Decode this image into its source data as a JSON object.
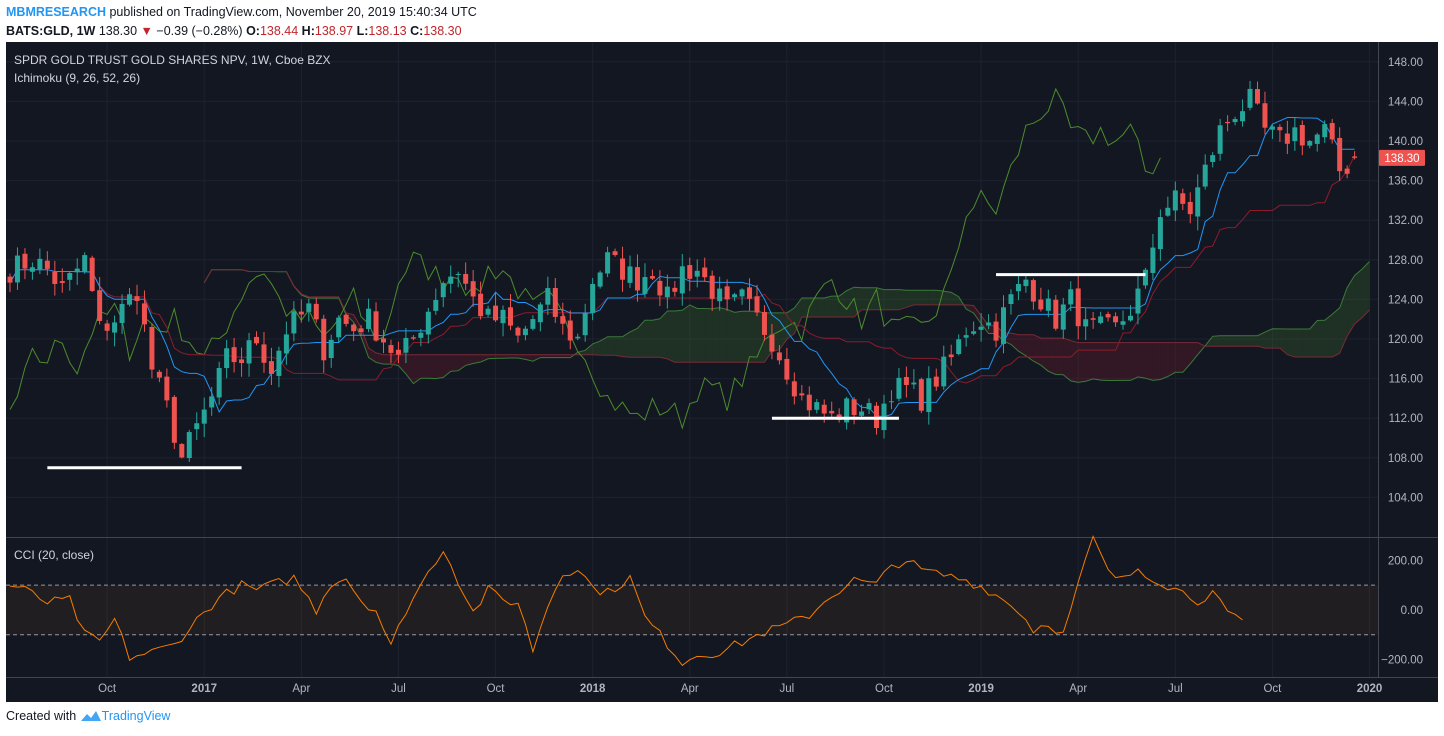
{
  "header": {
    "author": "MBMRESEARCH",
    "published": "published on TradingView.com, November 20, 2019 15:40:34 UTC",
    "symbol": "BATS:GLD, 1W",
    "last": "138.30",
    "change": "−0.39 (−0.28%)",
    "open_label": "O:",
    "open": "138.44",
    "high_label": "H:",
    "high": "138.97",
    "low_label": "L:",
    "low": "138.13",
    "close_label": "C:",
    "close": "138.30"
  },
  "footer": {
    "created": "Created with",
    "brand": "TradingView"
  },
  "colors": {
    "bg": "#131722",
    "up": "#26a69a",
    "down": "#ef5350",
    "tenkan": "#2196f3",
    "kijun": "#8c1c2c",
    "chikou": "#4c8c2c",
    "cci": "#f57c00",
    "grid": "#1e2230",
    "support": "#ffffff",
    "text": "#b2b5be"
  },
  "chart_data": [
    {
      "type": "candlestick",
      "title": "SPDR GOLD TRUST GOLD SHARES NPV, 1W, Cboe BZX",
      "indicator": "Ichimoku (9, 26, 52, 26)",
      "last_price_label": "138.30",
      "ylim": [
        100,
        150
      ],
      "yticks": [
        104,
        108,
        112,
        116,
        120,
        124,
        128,
        132,
        136,
        140,
        144,
        148
      ],
      "ytick_labels": [
        "104.00",
        "108.00",
        "112.00",
        "116.00",
        "120.00",
        "124.00",
        "128.00",
        "132.00",
        "136.00",
        "140.00",
        "144.00",
        "148.00"
      ],
      "xticks": [
        {
          "label": "Oct",
          "bar": 13
        },
        {
          "label": "2017",
          "bar": 26
        },
        {
          "label": "Apr",
          "bar": 39
        },
        {
          "label": "Jul",
          "bar": 52
        },
        {
          "label": "Oct",
          "bar": 65
        },
        {
          "label": "2018",
          "bar": 78
        },
        {
          "label": "Apr",
          "bar": 91
        },
        {
          "label": "Jul",
          "bar": 104
        },
        {
          "label": "Oct",
          "bar": 117
        },
        {
          "label": "2019",
          "bar": 130
        },
        {
          "label": "Apr",
          "bar": 143
        },
        {
          "label": "Jul",
          "bar": 156
        },
        {
          "label": "Oct",
          "bar": 169
        },
        {
          "label": "2020",
          "bar": 182
        }
      ],
      "weekly_close_anchors": [
        [
          0,
          127
        ],
        [
          3,
          128
        ],
        [
          5,
          127
        ],
        [
          7,
          125
        ],
        [
          10,
          128
        ],
        [
          12,
          121
        ],
        [
          14,
          122
        ],
        [
          17,
          125
        ],
        [
          19,
          117
        ],
        [
          21,
          113
        ],
        [
          23,
          108
        ],
        [
          25,
          111
        ],
        [
          27,
          114
        ],
        [
          29,
          118
        ],
        [
          31,
          118
        ],
        [
          33,
          120
        ],
        [
          35,
          117
        ],
        [
          37,
          121
        ],
        [
          40,
          123
        ],
        [
          42,
          119
        ],
        [
          44,
          122
        ],
        [
          46,
          121
        ],
        [
          48,
          122
        ],
        [
          50,
          120
        ],
        [
          52,
          118
        ],
        [
          54,
          120
        ],
        [
          56,
          123
        ],
        [
          58,
          126
        ],
        [
          60,
          127
        ],
        [
          62,
          124
        ],
        [
          64,
          122
        ],
        [
          66,
          122
        ],
        [
          68,
          120
        ],
        [
          70,
          122
        ],
        [
          72,
          124
        ],
        [
          74,
          121
        ],
        [
          76,
          120
        ],
        [
          78,
          126
        ],
        [
          80,
          128
        ],
        [
          82,
          127
        ],
        [
          84,
          126
        ],
        [
          86,
          127
        ],
        [
          88,
          124
        ],
        [
          90,
          127
        ],
        [
          92,
          127
        ],
        [
          94,
          125
        ],
        [
          96,
          123
        ],
        [
          98,
          124
        ],
        [
          100,
          122
        ],
        [
          102,
          120
        ],
        [
          104,
          117
        ],
        [
          106,
          114
        ],
        [
          108,
          113
        ],
        [
          110,
          112
        ],
        [
          112,
          113
        ],
        [
          114,
          113
        ],
        [
          116,
          112
        ],
        [
          118,
          115
        ],
        [
          120,
          115
        ],
        [
          122,
          114
        ],
        [
          124,
          116
        ],
        [
          126,
          118
        ],
        [
          128,
          121
        ],
        [
          130,
          122
        ],
        [
          132,
          121
        ],
        [
          134,
          124
        ],
        [
          136,
          126
        ],
        [
          138,
          124
        ],
        [
          140,
          122
        ],
        [
          142,
          124
        ],
        [
          144,
          121
        ],
        [
          146,
          121
        ],
        [
          148,
          121
        ],
        [
          150,
          123
        ],
        [
          152,
          126
        ],
        [
          154,
          133
        ],
        [
          156,
          134
        ],
        [
          158,
          133
        ],
        [
          160,
          137
        ],
        [
          162,
          141
        ],
        [
          164,
          143
        ],
        [
          166,
          144
        ],
        [
          168,
          141
        ],
        [
          170,
          140
        ],
        [
          172,
          141
        ],
        [
          174,
          140
        ],
        [
          176,
          141
        ],
        [
          178,
          137
        ],
        [
          180,
          138
        ]
      ],
      "support_lines": [
        {
          "from_bar": 5,
          "to_bar": 31,
          "price": 107
        },
        {
          "from_bar": 102,
          "to_bar": 119,
          "price": 112
        },
        {
          "from_bar": 132,
          "to_bar": 152,
          "price": 126.5
        }
      ]
    },
    {
      "type": "line",
      "title": "CCI (20, close)",
      "ylim": [
        -270,
        290
      ],
      "yticks": [
        -200,
        0,
        200
      ],
      "ytick_labels": [
        "−200.00",
        "0.00",
        "200.00"
      ],
      "band": [
        -100,
        100
      ],
      "cci_anchors": [
        [
          0,
          100
        ],
        [
          2,
          80
        ],
        [
          5,
          30
        ],
        [
          8,
          40
        ],
        [
          10,
          -100
        ],
        [
          12,
          -130
        ],
        [
          14,
          -40
        ],
        [
          16,
          -190
        ],
        [
          19,
          -170
        ],
        [
          22,
          -140
        ],
        [
          25,
          -40
        ],
        [
          28,
          50
        ],
        [
          31,
          100
        ],
        [
          33,
          80
        ],
        [
          36,
          110
        ],
        [
          38,
          130
        ],
        [
          41,
          0
        ],
        [
          43,
          110
        ],
        [
          45,
          130
        ],
        [
          47,
          40
        ],
        [
          49,
          0
        ],
        [
          51,
          -150
        ],
        [
          53,
          0
        ],
        [
          55,
          100
        ],
        [
          58,
          250
        ],
        [
          60,
          120
        ],
        [
          62,
          -10
        ],
        [
          64,
          80
        ],
        [
          66,
          40
        ],
        [
          68,
          30
        ],
        [
          70,
          -160
        ],
        [
          72,
          20
        ],
        [
          74,
          150
        ],
        [
          76,
          170
        ],
        [
          78,
          90
        ],
        [
          80,
          70
        ],
        [
          83,
          130
        ],
        [
          85,
          -30
        ],
        [
          87,
          -100
        ],
        [
          90,
          -210
        ],
        [
          92,
          -180
        ],
        [
          95,
          -170
        ],
        [
          98,
          -130
        ],
        [
          101,
          -90
        ],
        [
          104,
          -60
        ],
        [
          107,
          -20
        ],
        [
          110,
          60
        ],
        [
          113,
          120
        ],
        [
          116,
          100
        ],
        [
          118,
          180
        ],
        [
          120,
          200
        ],
        [
          122,
          160
        ],
        [
          125,
          140
        ],
        [
          128,
          120
        ],
        [
          131,
          80
        ],
        [
          133,
          40
        ],
        [
          135,
          0
        ],
        [
          137,
          -80
        ],
        [
          139,
          -50
        ],
        [
          141,
          -100
        ],
        [
          143,
          100
        ],
        [
          145,
          290
        ],
        [
          147,
          150
        ],
        [
          149,
          120
        ],
        [
          151,
          170
        ],
        [
          153,
          130
        ],
        [
          155,
          100
        ],
        [
          157,
          70
        ],
        [
          159,
          40
        ],
        [
          161,
          70
        ],
        [
          163,
          -20
        ],
        [
          165,
          -40
        ]
      ]
    }
  ]
}
